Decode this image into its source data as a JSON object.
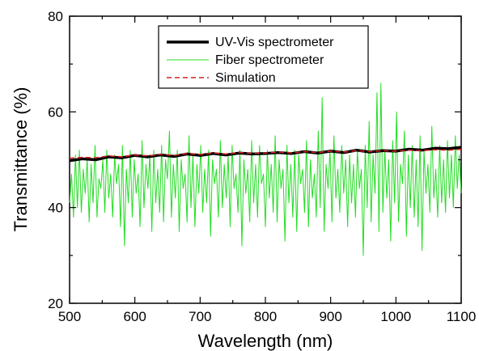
{
  "chart_data": {
    "type": "line",
    "xlabel": "Wavelength (nm)",
    "ylabel": "Transmittance (%)",
    "xlim": [
      500,
      1100
    ],
    "ylim": [
      20,
      80
    ],
    "x_ticks": [
      500,
      600,
      700,
      800,
      900,
      1000,
      1100
    ],
    "y_ticks": [
      20,
      40,
      60,
      80
    ],
    "x_tick_labels": [
      "500",
      "600",
      "700",
      "800",
      "900",
      "1000",
      "1100"
    ],
    "y_tick_labels": [
      "20",
      "40",
      "60",
      "80"
    ],
    "legend_position": "top-center",
    "series": [
      {
        "name": "UV-Vis spectrometer",
        "color": "#000000",
        "style": "solid-thick",
        "x": [
          500,
          520,
          540,
          560,
          580,
          600,
          620,
          640,
          660,
          680,
          700,
          720,
          740,
          760,
          780,
          800,
          820,
          840,
          860,
          880,
          900,
          920,
          940,
          960,
          980,
          1000,
          1020,
          1040,
          1060,
          1080,
          1100
        ],
        "y": [
          49.8,
          50.2,
          50.0,
          50.6,
          50.4,
          50.9,
          50.6,
          51.0,
          50.7,
          51.2,
          50.9,
          51.3,
          51.0,
          51.4,
          51.2,
          51.3,
          51.5,
          51.3,
          51.7,
          51.4,
          51.8,
          51.5,
          52.0,
          51.6,
          51.9,
          51.8,
          52.2,
          52.0,
          52.4,
          52.3,
          52.6
        ]
      },
      {
        "name": "Fiber spectrometer",
        "color": "#22dd22",
        "style": "solid-thin",
        "x": [
          500,
          503,
          506,
          509,
          512,
          515,
          518,
          521,
          524,
          527,
          530,
          533,
          536,
          539,
          542,
          545,
          548,
          551,
          554,
          557,
          560,
          563,
          566,
          569,
          572,
          575,
          578,
          581,
          584,
          587,
          590,
          593,
          596,
          599,
          602,
          605,
          608,
          611,
          614,
          617,
          620,
          623,
          626,
          629,
          632,
          635,
          638,
          641,
          644,
          647,
          650,
          653,
          656,
          659,
          662,
          665,
          668,
          671,
          674,
          677,
          680,
          683,
          686,
          689,
          692,
          695,
          698,
          701,
          704,
          707,
          710,
          713,
          716,
          719,
          722,
          725,
          728,
          731,
          734,
          737,
          740,
          743,
          746,
          749,
          752,
          755,
          758,
          761,
          764,
          767,
          770,
          773,
          776,
          779,
          782,
          785,
          788,
          791,
          794,
          797,
          800,
          803,
          806,
          809,
          812,
          815,
          818,
          821,
          824,
          827,
          830,
          833,
          836,
          839,
          842,
          845,
          848,
          851,
          854,
          857,
          860,
          863,
          866,
          869,
          872,
          875,
          878,
          881,
          884,
          887,
          890,
          893,
          896,
          899,
          902,
          905,
          908,
          911,
          914,
          917,
          920,
          923,
          926,
          929,
          932,
          935,
          938,
          941,
          944,
          947,
          950,
          953,
          956,
          959,
          962,
          965,
          968,
          971,
          974,
          977,
          980,
          983,
          986,
          989,
          992,
          995,
          998,
          1001,
          1004,
          1007,
          1010,
          1013,
          1016,
          1019,
          1022,
          1025,
          1028,
          1031,
          1034,
          1037,
          1040,
          1043,
          1046,
          1049,
          1052,
          1055,
          1058,
          1061,
          1064,
          1067,
          1070,
          1073,
          1076,
          1079,
          1082,
          1085,
          1088,
          1091,
          1094,
          1097,
          1100
        ],
        "y": [
          41,
          47,
          38,
          51,
          40,
          52,
          39,
          48,
          43,
          50,
          37,
          49,
          41,
          53,
          38,
          46,
          44,
          50,
          39,
          52,
          42,
          47,
          38,
          51,
          45,
          49,
          36,
          53,
          32,
          48,
          41,
          52,
          38,
          50,
          43,
          47,
          36,
          54,
          40,
          49,
          44,
          51,
          35,
          52,
          41,
          48,
          39,
          53,
          37,
          50,
          46,
          56,
          38,
          49,
          42,
          52,
          35,
          50,
          44,
          47,
          37,
          55,
          40,
          51,
          36,
          49,
          43,
          53,
          39,
          48,
          41,
          52,
          34,
          50,
          45,
          48,
          38,
          54,
          40,
          49,
          42,
          51,
          36,
          53,
          44,
          47,
          39,
          52,
          32,
          50,
          43,
          48,
          37,
          54,
          41,
          49,
          38,
          53,
          45,
          47,
          36,
          52,
          42,
          49,
          39,
          55,
          37,
          50,
          44,
          48,
          33,
          53,
          41,
          49,
          38,
          52,
          35,
          51,
          45,
          48,
          39,
          54,
          36,
          50,
          42,
          47,
          38,
          56,
          40,
          63,
          35,
          49,
          44,
          52,
          37,
          55,
          42,
          48,
          39,
          53,
          43,
          50,
          36,
          51,
          41,
          49,
          38,
          52,
          44,
          48,
          30,
          53,
          40,
          58,
          37,
          51,
          43,
          64,
          35,
          66,
          39,
          52,
          42,
          50,
          33,
          54,
          41,
          60,
          37,
          49,
          45,
          56,
          34,
          51,
          40,
          53,
          38,
          50,
          36,
          55,
          31,
          52,
          43,
          49,
          39,
          57,
          42,
          48,
          38,
          53,
          41,
          50,
          39,
          54,
          42,
          51,
          40,
          55,
          44,
          51,
          43
        ]
      },
      {
        "name": "Simulation",
        "color": "#d42020",
        "style": "dashed",
        "x": [
          500,
          520,
          540,
          560,
          580,
          600,
          620,
          640,
          660,
          680,
          700,
          720,
          740,
          760,
          780,
          800,
          820,
          840,
          860,
          880,
          900,
          920,
          940,
          960,
          980,
          1000,
          1020,
          1040,
          1060,
          1080,
          1100
        ],
        "y": [
          50.3,
          50.5,
          50.4,
          50.8,
          50.6,
          51.0,
          50.8,
          51.1,
          50.9,
          51.3,
          51.1,
          51.4,
          51.2,
          51.5,
          51.3,
          51.4,
          51.6,
          51.4,
          51.7,
          51.5,
          51.8,
          51.6,
          51.9,
          51.7,
          51.9,
          51.8,
          52.0,
          51.9,
          52.1,
          52.0,
          52.2
        ]
      }
    ]
  }
}
